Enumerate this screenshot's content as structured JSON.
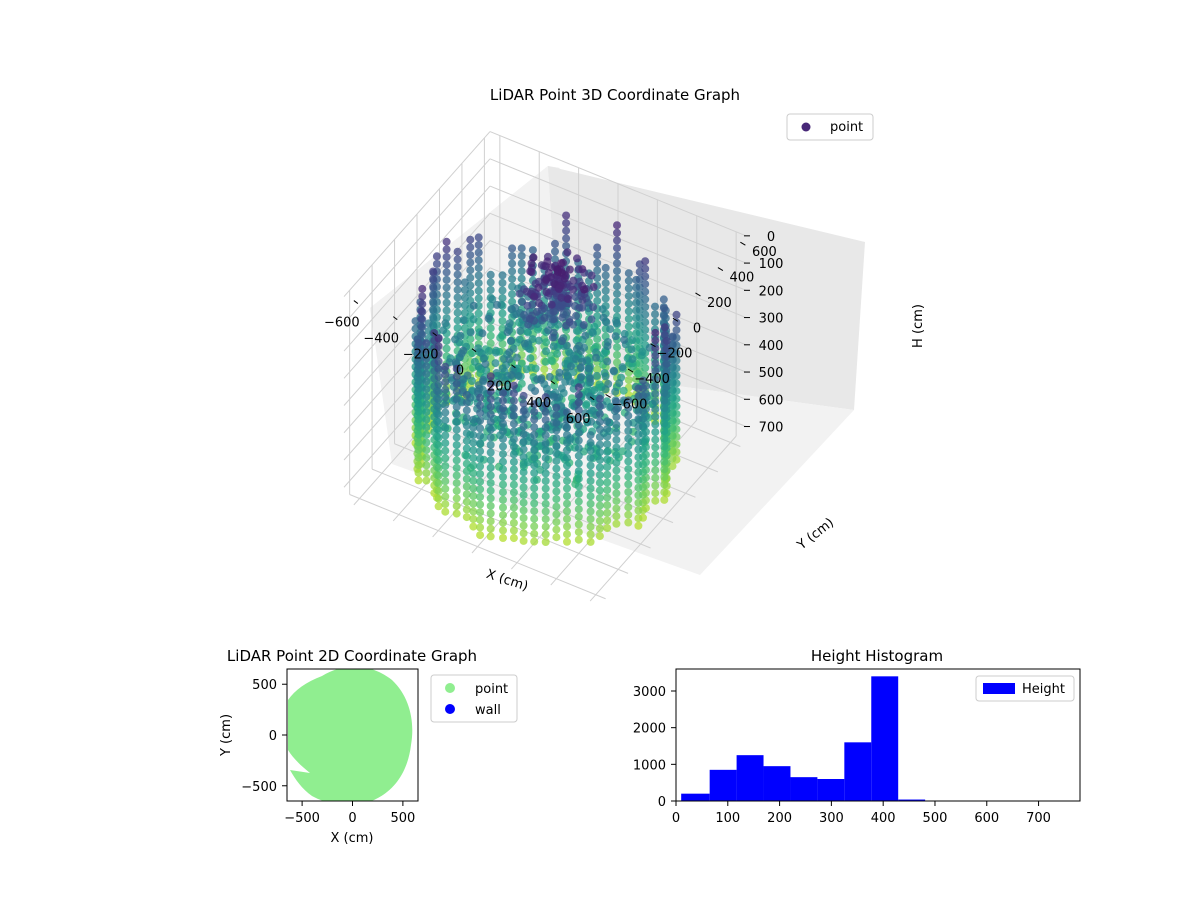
{
  "figure": {
    "main_title": "LiDAR Point 3D Coordinate Graph"
  },
  "chart_data": [
    {
      "type": "scatter",
      "subtype": "3d",
      "title": "LiDAR Point 3D Coordinate Graph",
      "xlabel": "X (cm)",
      "ylabel": "Y (cm)",
      "zlabel": "H (cm)",
      "xticks": [
        "−600",
        "−400",
        "−200",
        "0",
        "200",
        "400",
        "600"
      ],
      "yticks": [
        "−600",
        "−400",
        "−200",
        "0",
        "200",
        "400",
        "600"
      ],
      "zticks": [
        "0",
        "100",
        "200",
        "300",
        "400",
        "500",
        "600",
        "700"
      ],
      "xlim": [
        -650,
        650
      ],
      "ylim": [
        -650,
        650
      ],
      "zlim": [
        0,
        750
      ],
      "zaxis_inverted": true,
      "colormap": "viridis",
      "series": [
        {
          "name": "point",
          "legend_color": "#482878"
        }
      ],
      "legend_position": "upper right",
      "grid": true
    },
    {
      "type": "scatter",
      "title": "LiDAR Point 2D Coordinate Graph",
      "xlabel": "X (cm)",
      "ylabel": "Y (cm)",
      "xticks": [
        "−500",
        "0",
        "500"
      ],
      "yticks": [
        "500",
        "0",
        "−500"
      ],
      "xlim": [
        -650,
        650
      ],
      "ylim": [
        -650,
        650
      ],
      "series": [
        {
          "name": "point",
          "color": "#90ee90"
        },
        {
          "name": "wall",
          "color": "#0000ff"
        }
      ],
      "legend_position": "outside right"
    },
    {
      "type": "bar",
      "subtype": "histogram",
      "title": "Height Histogram",
      "xlim": [
        0,
        780
      ],
      "ylim": [
        0,
        3600
      ],
      "xticks": [
        "0",
        "100",
        "200",
        "300",
        "400",
        "500",
        "600",
        "700"
      ],
      "yticks": [
        "0",
        "1000",
        "2000",
        "3000"
      ],
      "bins": [
        {
          "x0": 10,
          "x1": 65,
          "count": 200
        },
        {
          "x0": 65,
          "x1": 117,
          "count": 850
        },
        {
          "x0": 117,
          "x1": 169,
          "count": 1250
        },
        {
          "x0": 169,
          "x1": 221,
          "count": 950
        },
        {
          "x0": 221,
          "x1": 273,
          "count": 650
        },
        {
          "x0": 273,
          "x1": 325,
          "count": 600
        },
        {
          "x0": 325,
          "x1": 377,
          "count": 1600
        },
        {
          "x0": 377,
          "x1": 429,
          "count": 3400
        },
        {
          "x0": 429,
          "x1": 481,
          "count": 40
        },
        {
          "x0": 481,
          "x1": 533,
          "count": 5
        },
        {
          "x0": 533,
          "x1": 585,
          "count": 3
        },
        {
          "x0": 585,
          "x1": 637,
          "count": 2
        },
        {
          "x0": 637,
          "x1": 689,
          "count": 1
        },
        {
          "x0": 689,
          "x1": 741,
          "count": 1
        }
      ],
      "series": [
        {
          "name": "Height",
          "color": "#0000ff"
        }
      ],
      "legend_position": "upper right"
    }
  ]
}
